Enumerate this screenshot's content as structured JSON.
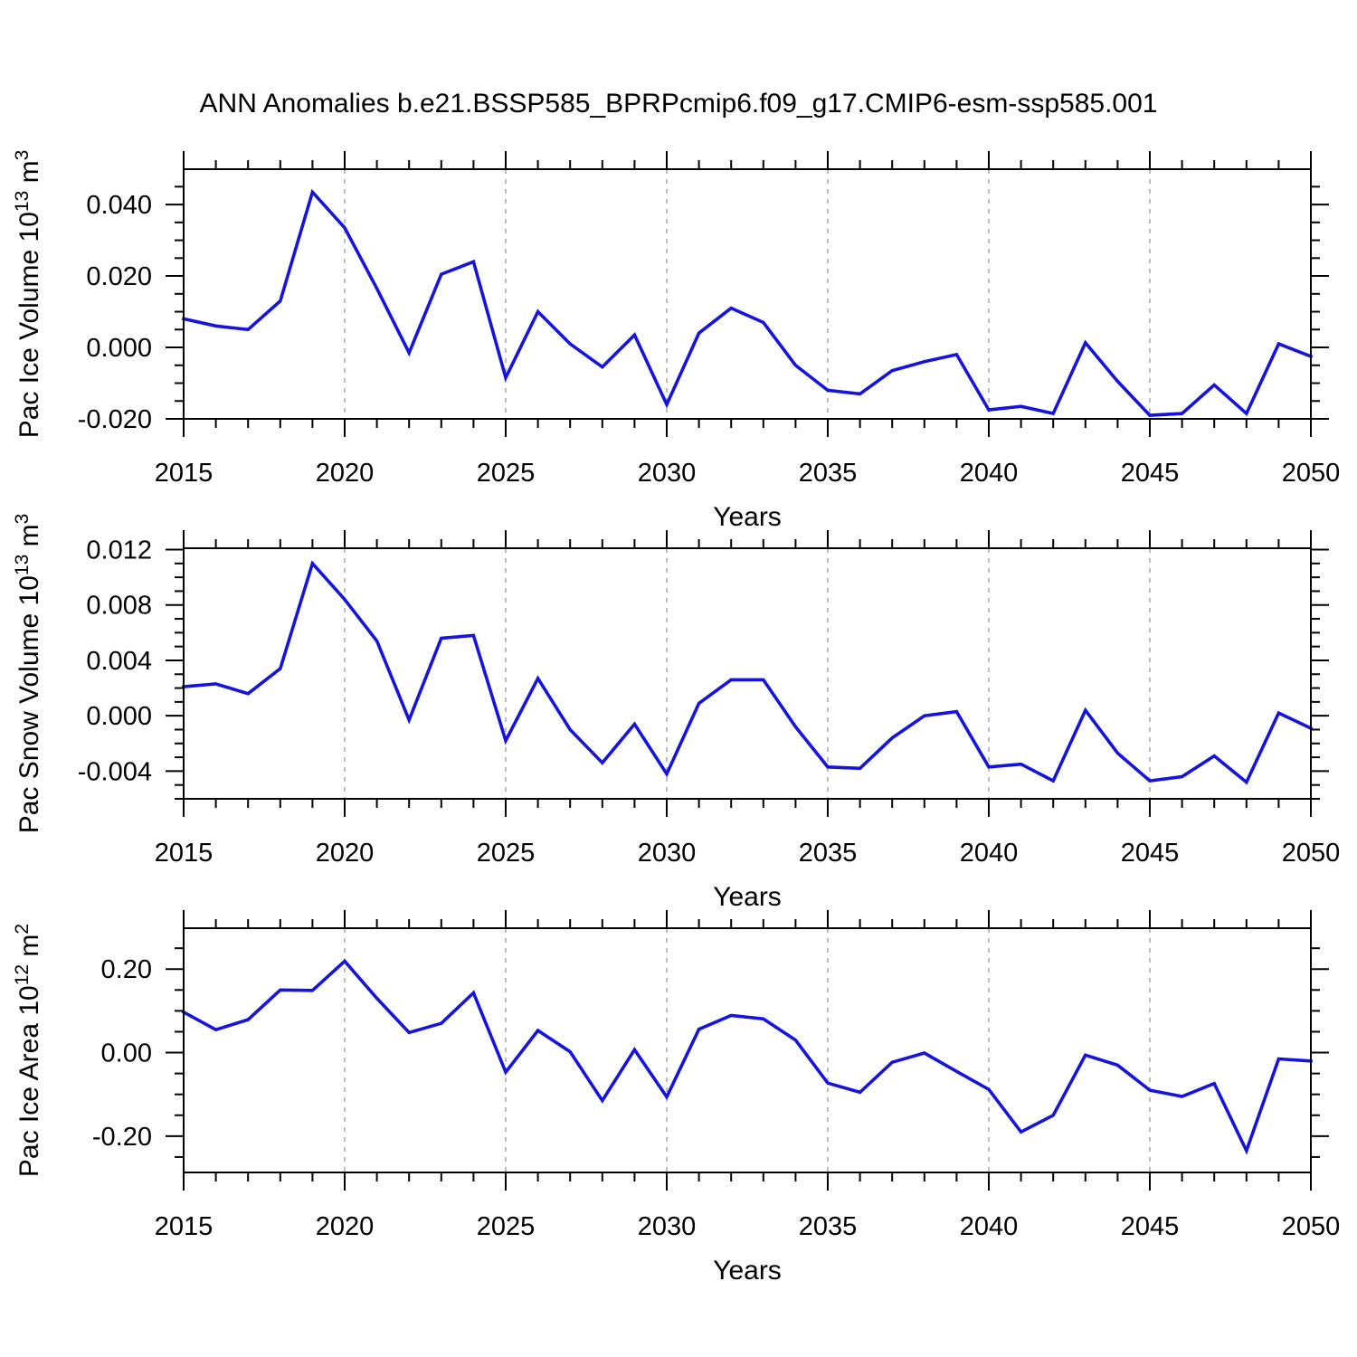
{
  "page": {
    "title": "ANN Anomalies b.e21.BSSP585_BPRPcmip6.f09_g17.CMIP6-esm-ssp585.001"
  },
  "colors": {
    "line": "#1414e0",
    "grid": "#999999",
    "axis": "#000000",
    "background": "#ffffff",
    "text": "#000000"
  },
  "x_axis": {
    "label": "Years",
    "min": 2015,
    "max": 2050,
    "major_tick_years": [
      2015,
      2020,
      2025,
      2030,
      2035,
      2040,
      2045,
      2050
    ],
    "major_tick_labels": [
      "2015",
      "2020",
      "2025",
      "2030",
      "2035",
      "2040",
      "2045",
      "2050"
    ],
    "minor_step_years": 1,
    "gridline_years": [
      2020,
      2025,
      2030,
      2035,
      2040,
      2045
    ],
    "grid_style": "vertical-dashed"
  },
  "chart_data": [
    {
      "type": "line",
      "title": "",
      "xlabel": "Years",
      "ylabel": "Pac Ice Volume 10^13 m^3",
      "ylabel_segments": [
        {
          "text": "Pac Ice Volume 10",
          "sup": false
        },
        {
          "text": "13",
          "sup": true
        },
        {
          "text": " m",
          "sup": false
        },
        {
          "text": "3",
          "sup": true
        }
      ],
      "x": [
        2015,
        2016,
        2017,
        2018,
        2019,
        2020,
        2021,
        2022,
        2023,
        2024,
        2025,
        2026,
        2027,
        2028,
        2029,
        2030,
        2031,
        2032,
        2033,
        2034,
        2035,
        2036,
        2037,
        2038,
        2039,
        2040,
        2041,
        2042,
        2043,
        2044,
        2045,
        2046,
        2047,
        2048,
        2049,
        2050
      ],
      "values": [
        0.008,
        0.006,
        0.005,
        0.013,
        0.0435,
        0.0335,
        0.0165,
        -0.0015,
        0.0205,
        0.024,
        -0.0085,
        0.01,
        0.001,
        -0.0055,
        0.0035,
        -0.016,
        0.004,
        0.011,
        0.007,
        -0.005,
        -0.012,
        -0.013,
        -0.0065,
        -0.004,
        -0.002,
        -0.0175,
        -0.0165,
        -0.0185,
        0.0013,
        -0.0095,
        -0.019,
        -0.0185,
        -0.0105,
        -0.0185,
        0.001,
        -0.0025
      ],
      "ylim": [
        -0.02,
        0.0499
      ],
      "yticks_major": [
        0.04,
        0.02,
        0.0,
        -0.02
      ],
      "ytick_labels": [
        "0.040",
        "0.020",
        "0.000",
        "-0.020"
      ],
      "yminor_step": 0.005,
      "legend": "none"
    },
    {
      "type": "line",
      "title": "",
      "xlabel": "Years",
      "ylabel": "Pac Snow Volume 10^13 m^3",
      "ylabel_segments": [
        {
          "text": "Pac Snow Volume 10",
          "sup": false
        },
        {
          "text": "13",
          "sup": true
        },
        {
          "text": " m",
          "sup": false
        },
        {
          "text": "3",
          "sup": true
        }
      ],
      "x": [
        2015,
        2016,
        2017,
        2018,
        2019,
        2020,
        2021,
        2022,
        2023,
        2024,
        2025,
        2026,
        2027,
        2028,
        2029,
        2030,
        2031,
        2032,
        2033,
        2034,
        2035,
        2036,
        2037,
        2038,
        2039,
        2040,
        2041,
        2042,
        2043,
        2044,
        2045,
        2046,
        2047,
        2048,
        2049,
        2050
      ],
      "values": [
        0.0021,
        0.0023,
        0.0016,
        0.0034,
        0.011,
        0.0084,
        0.0054,
        -0.0003,
        0.0056,
        0.0058,
        -0.0018,
        0.0027,
        -0.001,
        -0.0034,
        -0.0006,
        -0.0042,
        0.0009,
        0.0026,
        0.0026,
        -0.0008,
        -0.0037,
        -0.0038,
        -0.0016,
        0.0,
        0.0003,
        -0.0037,
        -0.0035,
        -0.0047,
        0.0004,
        -0.0027,
        -0.0047,
        -0.0044,
        -0.0029,
        -0.0048,
        0.0002,
        -0.0009
      ],
      "ylim": [
        -0.006,
        0.0121
      ],
      "yticks_major": [
        0.012,
        0.008,
        0.004,
        0.0,
        -0.004
      ],
      "ytick_labels": [
        "0.012",
        "0.008",
        "0.004",
        "0.000",
        "-0.004"
      ],
      "yminor_step": 0.001,
      "legend": "none"
    },
    {
      "type": "line",
      "title": "",
      "xlabel": "Years",
      "ylabel": "Pac Ice Area 10^12 m^2",
      "ylabel_segments": [
        {
          "text": "Pac Ice Area 10",
          "sup": false
        },
        {
          "text": "12",
          "sup": true
        },
        {
          "text": " m",
          "sup": false
        },
        {
          "text": "2",
          "sup": true
        }
      ],
      "x": [
        2015,
        2016,
        2017,
        2018,
        2019,
        2020,
        2021,
        2022,
        2023,
        2024,
        2025,
        2026,
        2027,
        2028,
        2029,
        2030,
        2031,
        2032,
        2033,
        2034,
        2035,
        2036,
        2037,
        2038,
        2039,
        2040,
        2041,
        2042,
        2043,
        2044,
        2045,
        2046,
        2047,
        2048,
        2049,
        2050
      ],
      "values": [
        0.097,
        0.055,
        0.079,
        0.15,
        0.149,
        0.219,
        0.13,
        0.048,
        0.07,
        0.143,
        -0.047,
        0.053,
        0.002,
        -0.115,
        0.007,
        -0.106,
        0.056,
        0.089,
        0.081,
        0.03,
        -0.073,
        -0.095,
        -0.023,
        -0.001,
        -0.045,
        -0.088,
        -0.19,
        -0.15,
        -0.006,
        -0.03,
        -0.09,
        -0.105,
        -0.074,
        -0.235,
        -0.015,
        -0.02
      ],
      "ylim": [
        -0.287,
        0.298
      ],
      "yticks_major": [
        0.2,
        0.0,
        -0.2
      ],
      "ytick_labels": [
        "0.20",
        "0.00",
        "-0.20"
      ],
      "yminor_step": 0.05,
      "legend": "none"
    }
  ]
}
